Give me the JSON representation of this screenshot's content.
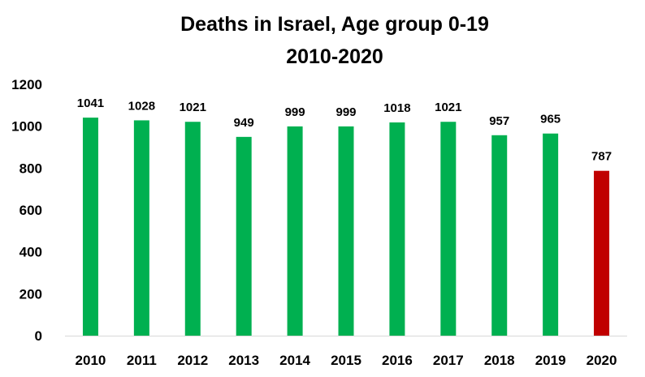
{
  "chart_data": {
    "type": "bar",
    "title": "Deaths in Israel, Age group 0-19",
    "subtitle": "2010-2020",
    "xlabel": "",
    "ylabel": "",
    "categories": [
      "2010",
      "2011",
      "2012",
      "2013",
      "2014",
      "2015",
      "2016",
      "2017",
      "2018",
      "2019",
      "2020"
    ],
    "values": [
      1041,
      1028,
      1021,
      949,
      999,
      999,
      1018,
      1021,
      957,
      965,
      787
    ],
    "data_labels": [
      "1041",
      "1028",
      "1021",
      "949",
      "999",
      "999",
      "1018",
      "1021",
      "957",
      "965",
      "787"
    ],
    "bar_colors": [
      "#00b050",
      "#00b050",
      "#00b050",
      "#00b050",
      "#00b050",
      "#00b050",
      "#00b050",
      "#00b050",
      "#00b050",
      "#00b050",
      "#c00000"
    ],
    "ylim": [
      0,
      1200
    ],
    "yticks": [
      "0",
      "200",
      "400",
      "600",
      "800",
      "1000",
      "1200"
    ],
    "grid": false,
    "legend": "none"
  }
}
